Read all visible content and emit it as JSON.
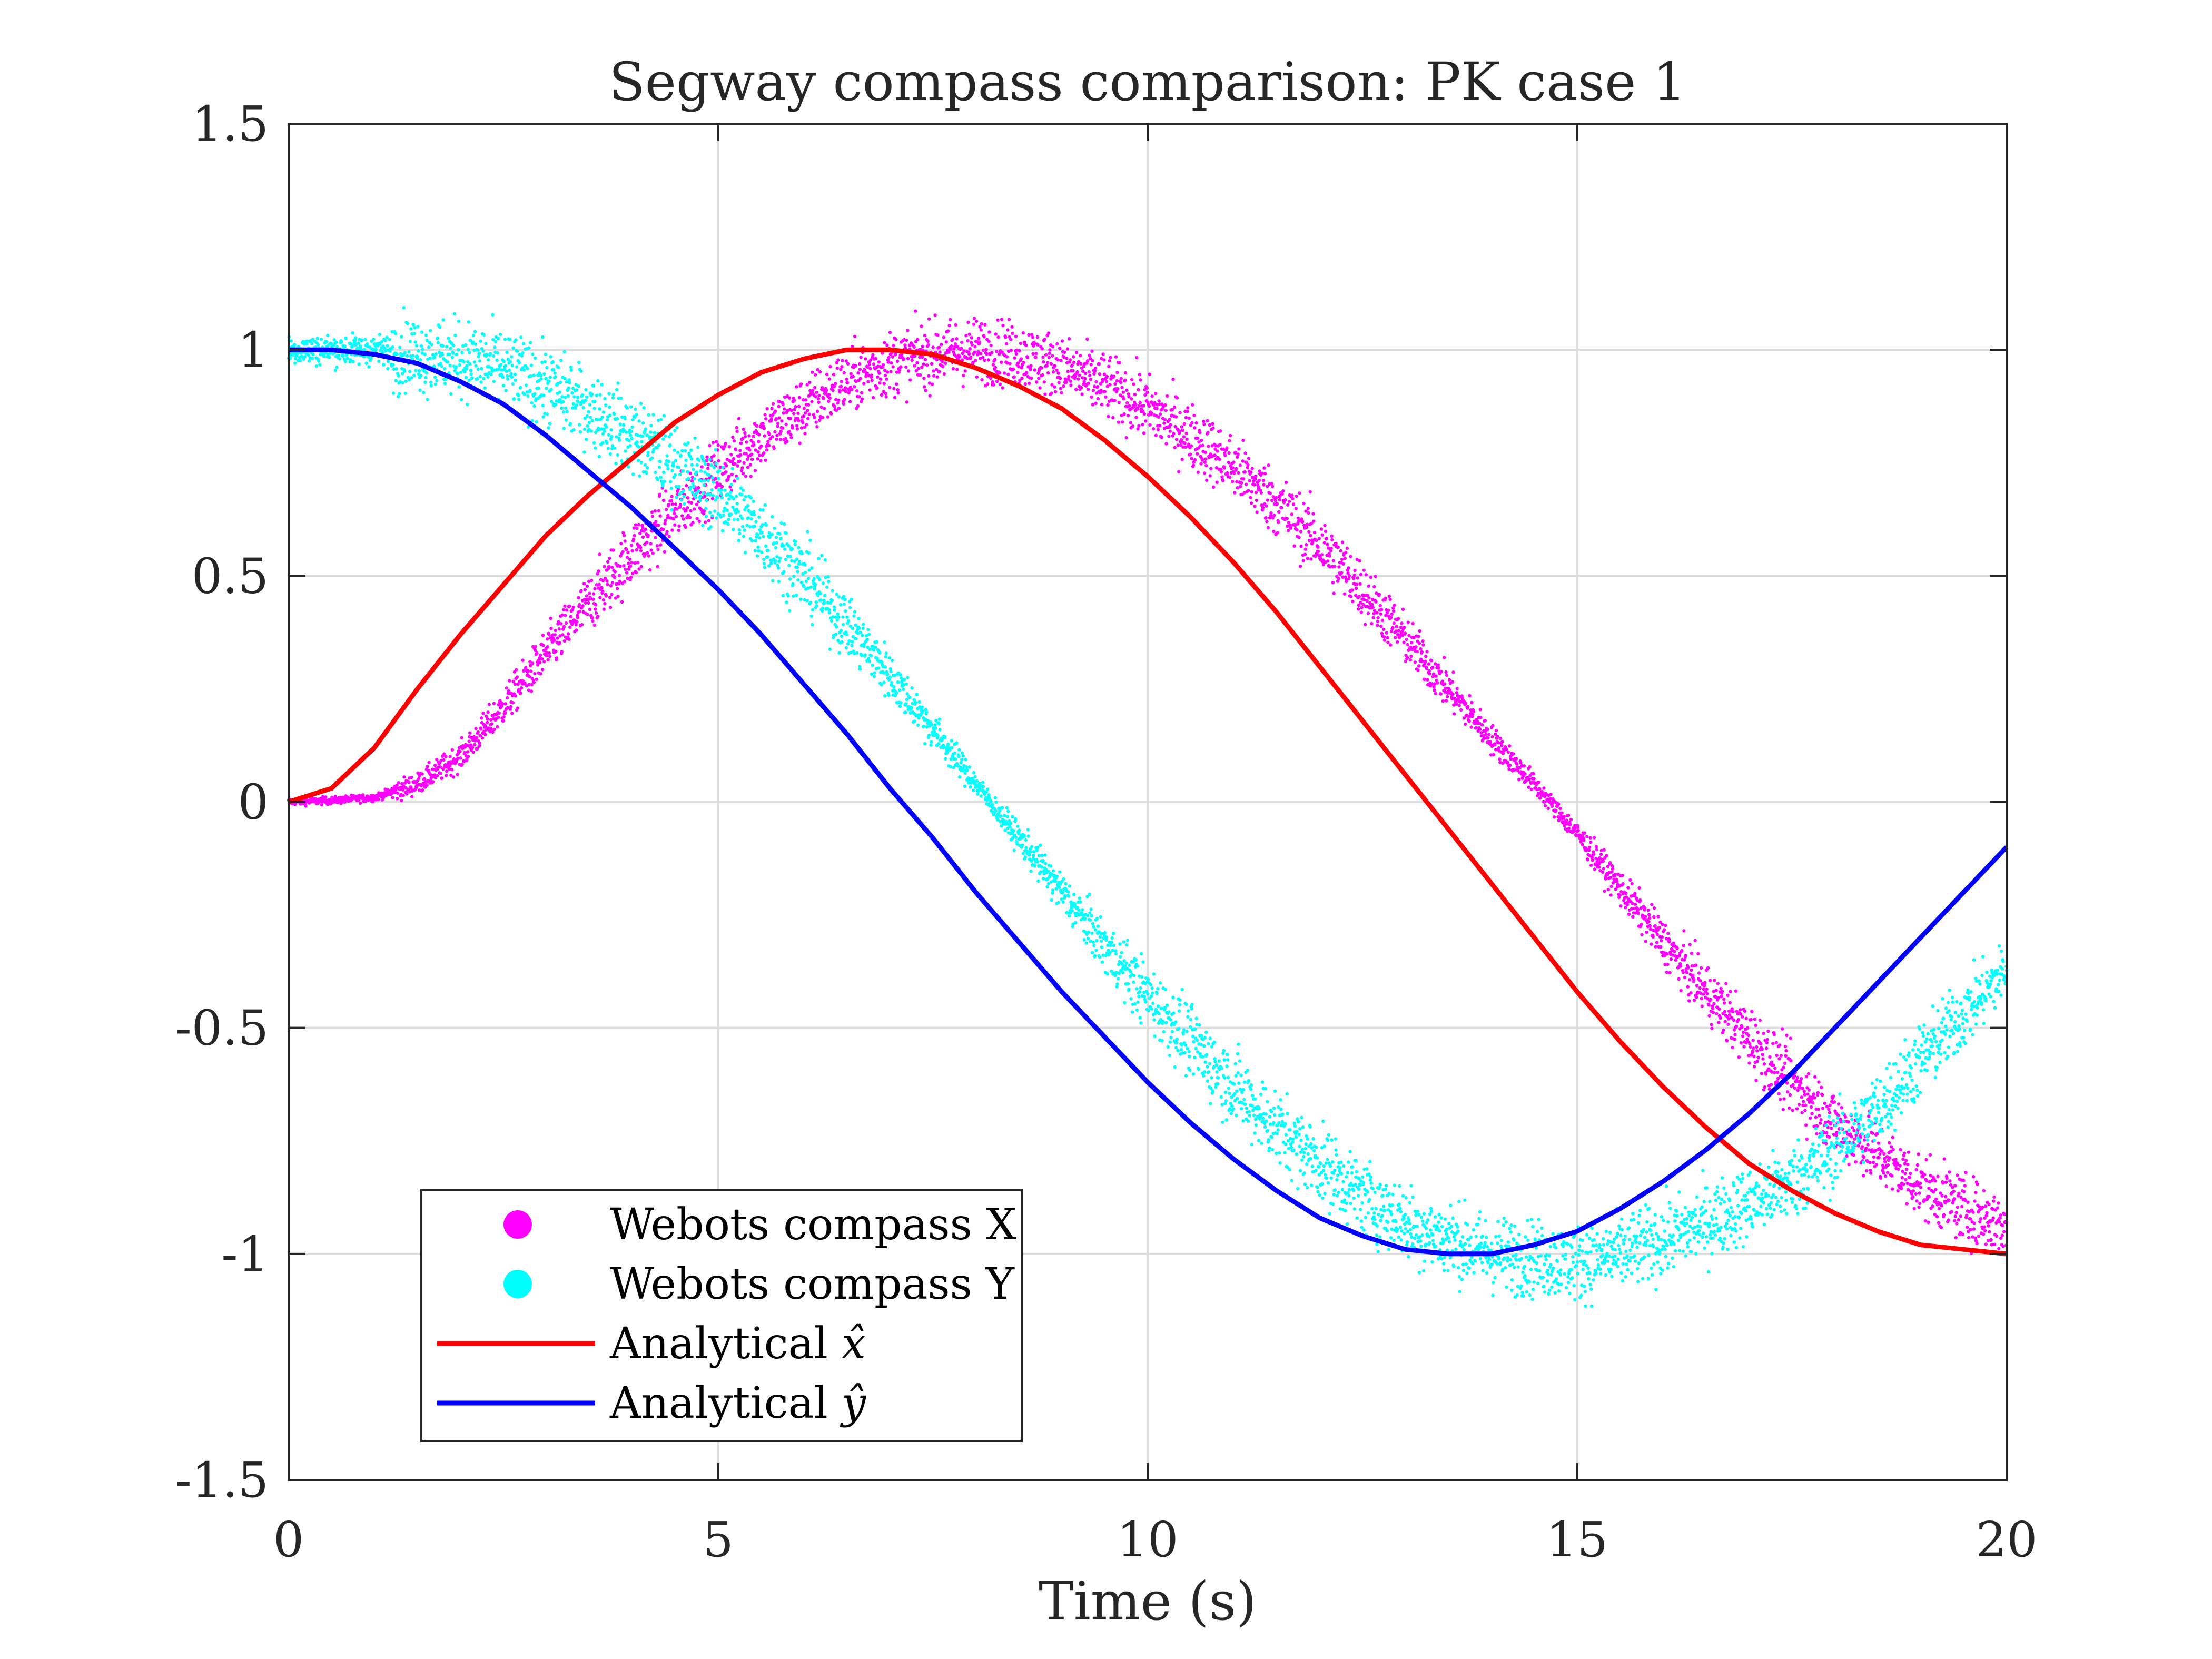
{
  "chart_data": {
    "type": "scatter",
    "title": "Segway compass comparison: PK case 1",
    "xlabel": "Time (s)",
    "ylabel": "",
    "xlim": [
      0,
      20
    ],
    "ylim": [
      -1.5,
      1.5
    ],
    "x_ticks": [
      "0",
      "5",
      "10",
      "15",
      "20"
    ],
    "y_ticks": [
      "-1.5",
      "-1",
      "-0.5",
      "0",
      "0.5",
      "1",
      "1.5"
    ],
    "grid": true,
    "legend_position": "bottom-left",
    "series": [
      {
        "name": "Webots compass X",
        "kind": "scatter",
        "color": "#ff00ff",
        "marker": "dot",
        "x": [
          0,
          0.5,
          1,
          1.5,
          2,
          2.5,
          3,
          3.5,
          4,
          4.5,
          5,
          5.5,
          6,
          6.5,
          7,
          7.5,
          8,
          8.5,
          9,
          9.5,
          10,
          10.5,
          11,
          11.5,
          12,
          12.5,
          13,
          13.5,
          14,
          14.5,
          15,
          15.5,
          16,
          16.5,
          17,
          17.5,
          18,
          18.5,
          19,
          19.5,
          20
        ],
        "y": [
          0,
          0.003,
          0.01,
          0.04,
          0.1,
          0.21,
          0.33,
          0.44,
          0.55,
          0.64,
          0.73,
          0.81,
          0.87,
          0.93,
          0.97,
          0.99,
          1.0,
          0.99,
          0.96,
          0.92,
          0.87,
          0.81,
          0.74,
          0.66,
          0.57,
          0.47,
          0.36,
          0.25,
          0.14,
          0.04,
          -0.07,
          -0.19,
          -0.31,
          -0.42,
          -0.52,
          -0.62,
          -0.71,
          -0.78,
          -0.85,
          -0.9,
          -0.94
        ],
        "noise_amplitude": 0.06
      },
      {
        "name": "Webots compass Y",
        "kind": "scatter",
        "color": "#00ffff",
        "marker": "dot",
        "x": [
          0,
          0.5,
          1,
          1.5,
          2,
          2.5,
          3,
          3.5,
          4,
          4.5,
          5,
          5.5,
          6,
          6.5,
          7,
          7.5,
          8,
          8.5,
          9,
          9.5,
          10,
          10.5,
          11,
          11.5,
          12,
          12.5,
          13,
          13.5,
          14,
          14.5,
          15,
          15.5,
          16,
          16.5,
          17,
          17.5,
          18,
          18.5,
          19,
          19.5,
          20
        ],
        "y": [
          1.0,
          1.0,
          1.0,
          0.99,
          0.98,
          0.96,
          0.92,
          0.87,
          0.81,
          0.75,
          0.68,
          0.6,
          0.5,
          0.39,
          0.28,
          0.16,
          0.04,
          -0.08,
          -0.2,
          -0.32,
          -0.43,
          -0.53,
          -0.63,
          -0.72,
          -0.8,
          -0.87,
          -0.93,
          -0.97,
          -1.0,
          -1.01,
          -1.02,
          -1.0,
          -0.97,
          -0.93,
          -0.89,
          -0.84,
          -0.77,
          -0.68,
          -0.57,
          -0.47,
          -0.37
        ],
        "noise_amplitude": 0.07
      },
      {
        "name": "Analytical $\\hat{x}$",
        "kind": "line",
        "color": "#ff0000",
        "x": [
          0,
          0.5,
          1,
          1.5,
          2,
          2.5,
          3,
          3.5,
          4,
          4.5,
          5,
          5.5,
          6,
          6.5,
          7,
          7.5,
          8,
          8.5,
          9,
          9.5,
          10,
          10.5,
          11,
          11.5,
          12,
          12.5,
          13,
          13.5,
          14,
          14.5,
          15,
          15.5,
          16,
          16.5,
          17,
          17.5,
          18,
          18.5,
          19,
          19.5,
          20
        ],
        "y": [
          0,
          0.03,
          0.12,
          0.25,
          0.37,
          0.48,
          0.59,
          0.68,
          0.76,
          0.84,
          0.9,
          0.95,
          0.98,
          1.0,
          1.0,
          0.99,
          0.96,
          0.92,
          0.87,
          0.8,
          0.72,
          0.63,
          0.53,
          0.42,
          0.3,
          0.18,
          0.06,
          -0.06,
          -0.18,
          -0.3,
          -0.42,
          -0.53,
          -0.63,
          -0.72,
          -0.8,
          -0.86,
          -0.91,
          -0.95,
          -0.98,
          -0.99,
          -1.0
        ]
      },
      {
        "name": "Analytical $\\hat{y}$",
        "kind": "line",
        "color": "#0000ff",
        "x": [
          0,
          0.5,
          1,
          1.5,
          2,
          2.5,
          3,
          3.5,
          4,
          4.5,
          5,
          5.5,
          6,
          6.5,
          7,
          7.5,
          8,
          8.5,
          9,
          9.5,
          10,
          10.5,
          11,
          11.5,
          12,
          12.5,
          13,
          13.5,
          14,
          14.5,
          15,
          15.5,
          16,
          16.5,
          17,
          17.5,
          18,
          18.5,
          19,
          19.5,
          20
        ],
        "y": [
          1.0,
          1.0,
          0.99,
          0.97,
          0.93,
          0.88,
          0.81,
          0.73,
          0.65,
          0.56,
          0.47,
          0.37,
          0.26,
          0.15,
          0.03,
          -0.08,
          -0.2,
          -0.31,
          -0.42,
          -0.52,
          -0.62,
          -0.71,
          -0.79,
          -0.86,
          -0.92,
          -0.96,
          -0.99,
          -1.0,
          -1.0,
          -0.98,
          -0.95,
          -0.9,
          -0.84,
          -0.77,
          -0.69,
          -0.6,
          -0.5,
          -0.4,
          -0.3,
          -0.2,
          -0.1
        ]
      }
    ]
  },
  "legend": {
    "items": [
      {
        "label": "Webots compass X",
        "color": "#ff00ff",
        "symbol": "dot"
      },
      {
        "label": "Webots compass Y",
        "color": "#00ffff",
        "symbol": "dot"
      },
      {
        "label": "Analytical ",
        "math": "x̂",
        "color": "#ff0000",
        "symbol": "line"
      },
      {
        "label": "Analytical ",
        "math": "ŷ",
        "color": "#0000ff",
        "symbol": "line"
      }
    ]
  }
}
